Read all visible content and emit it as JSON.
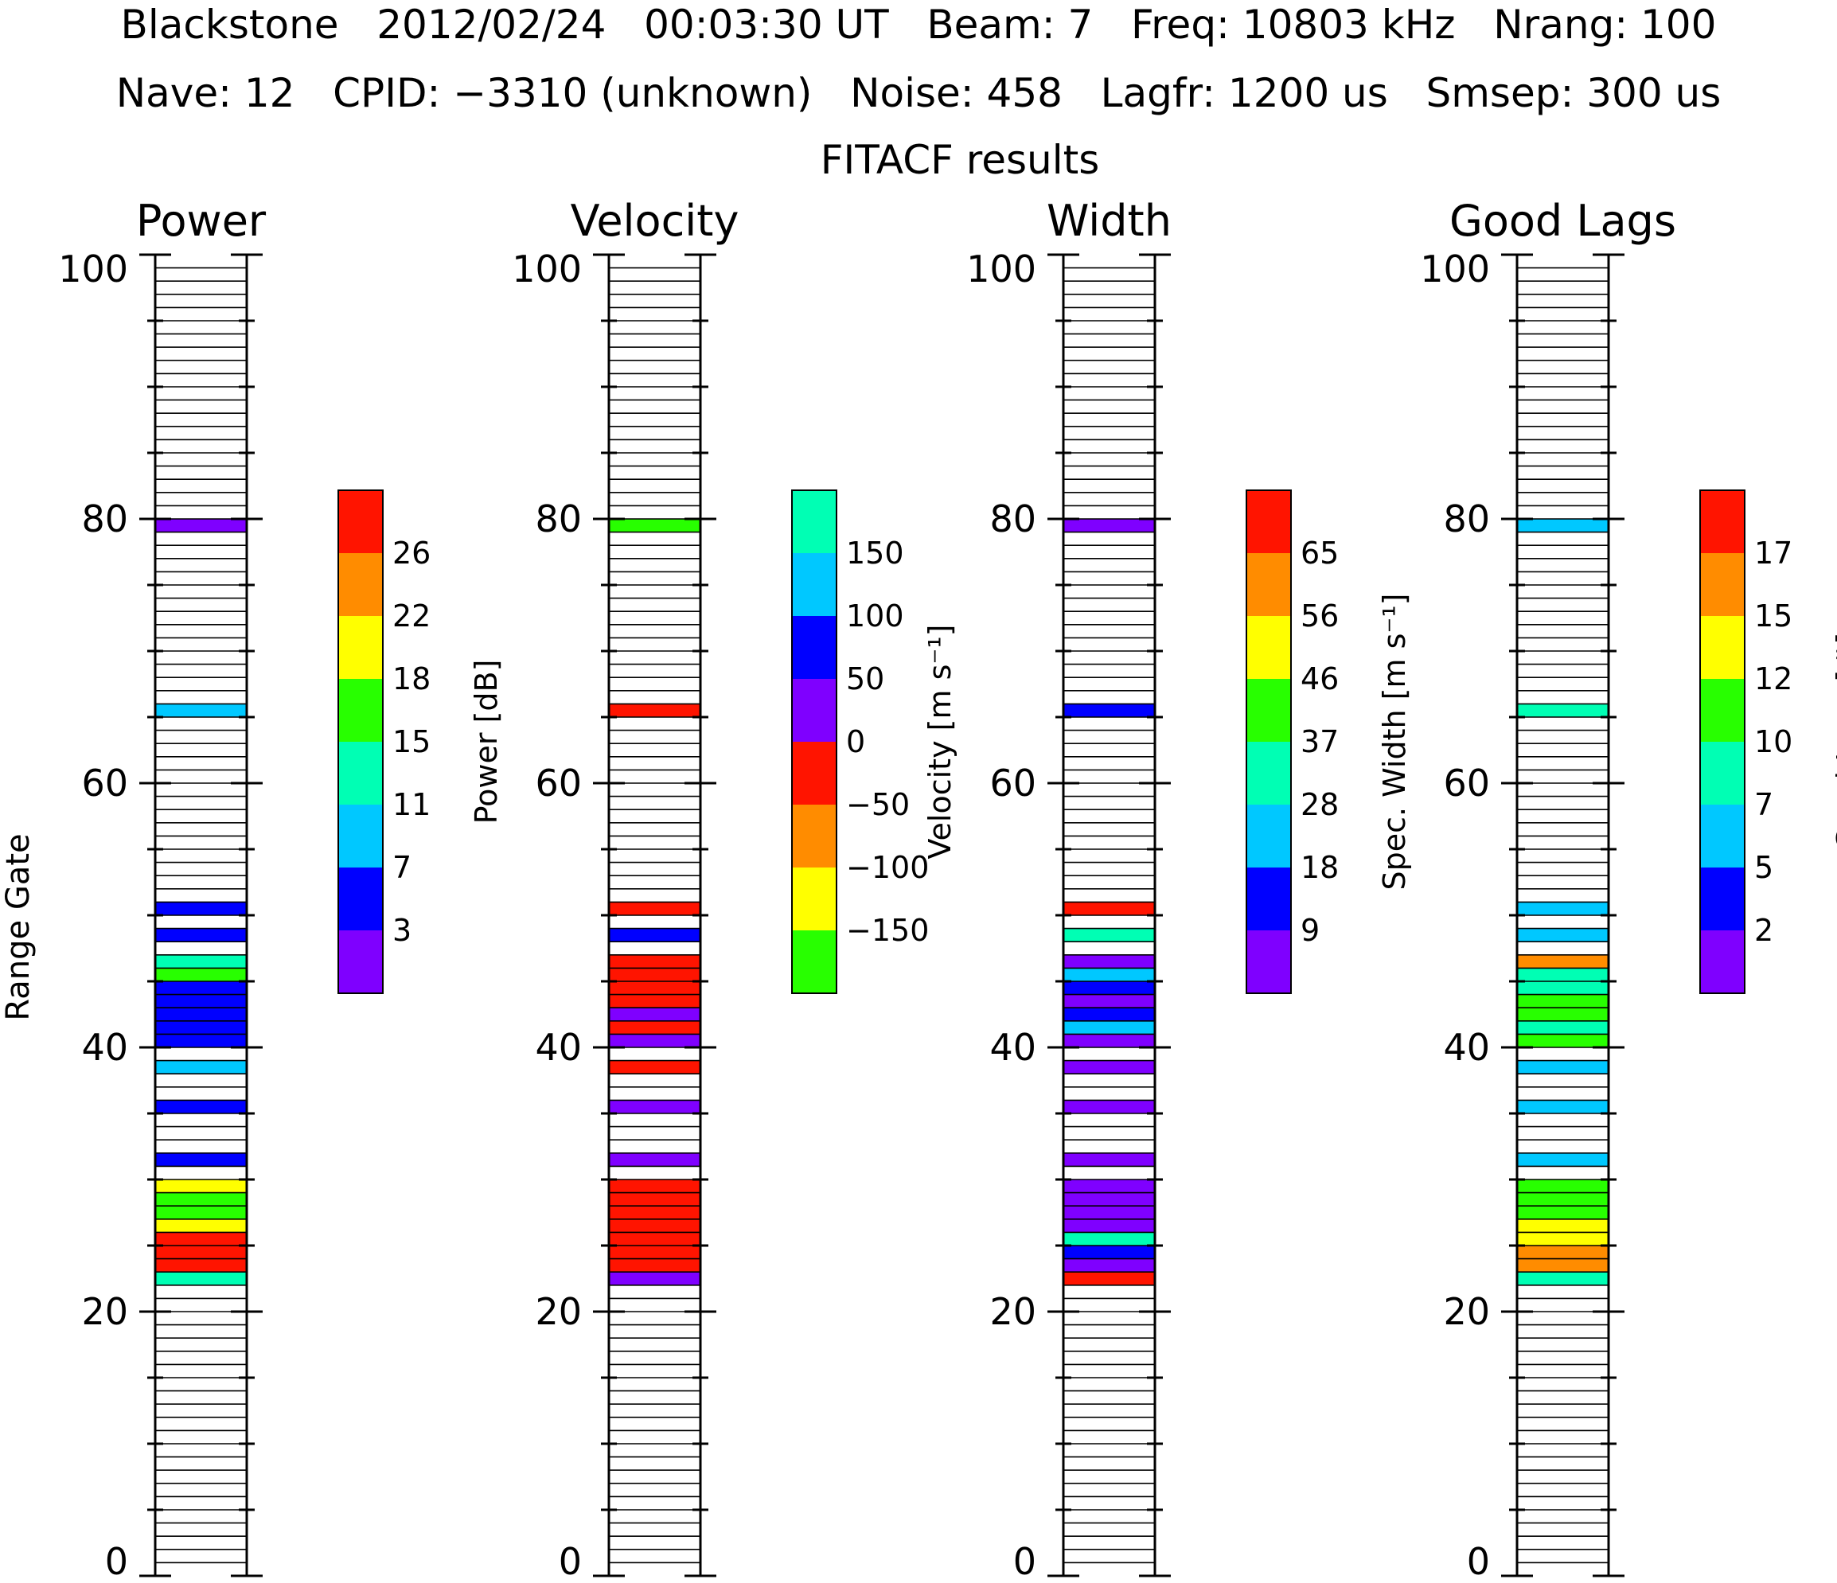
{
  "header": {
    "line1": "Blackstone   2012/02/24   00:03:30 UT   Beam: 7   Freq: 10803 kHz   Nrang: 100",
    "line2": "Nave: 12   CPID: −3310 (unknown)   Noise: 458   Lagfr: 1200 us   Smsep: 300 us",
    "subtitle": "FITACF results"
  },
  "y_axis": {
    "label": "Range Gate",
    "range": [
      0,
      100
    ],
    "ticks": [
      "0",
      "20",
      "40",
      "60",
      "80",
      "100"
    ]
  },
  "palette": {
    "purple": "#7f00ff",
    "blue": "#0000ff",
    "cyan": "#00c8ff",
    "teal": "#00ffb4",
    "green": "#28ff00",
    "yellow": "#ffff00",
    "orange": "#ff8c00",
    "red": "#ff1400"
  },
  "chart_data": [
    {
      "type": "heatmap",
      "title": "Power",
      "colorbar": {
        "title": "Power [dB]",
        "colors": [
          "purple",
          "blue",
          "cyan",
          "teal",
          "green",
          "yellow",
          "orange",
          "red"
        ],
        "tick_labels": [
          "3",
          "7",
          "11",
          "15",
          "18",
          "22",
          "26"
        ]
      },
      "gates": [
        {
          "gate": 22,
          "color": "teal"
        },
        {
          "gate": 23,
          "color": "red"
        },
        {
          "gate": 24,
          "color": "red"
        },
        {
          "gate": 25,
          "color": "red"
        },
        {
          "gate": 26,
          "color": "yellow"
        },
        {
          "gate": 27,
          "color": "green"
        },
        {
          "gate": 28,
          "color": "green"
        },
        {
          "gate": 29,
          "color": "yellow"
        },
        {
          "gate": 31,
          "color": "blue"
        },
        {
          "gate": 35,
          "color": "blue"
        },
        {
          "gate": 38,
          "color": "cyan"
        },
        {
          "gate": 40,
          "color": "blue"
        },
        {
          "gate": 41,
          "color": "blue"
        },
        {
          "gate": 42,
          "color": "blue"
        },
        {
          "gate": 43,
          "color": "blue"
        },
        {
          "gate": 44,
          "color": "blue"
        },
        {
          "gate": 45,
          "color": "green"
        },
        {
          "gate": 46,
          "color": "teal"
        },
        {
          "gate": 48,
          "color": "blue"
        },
        {
          "gate": 50,
          "color": "blue"
        },
        {
          "gate": 65,
          "color": "cyan"
        },
        {
          "gate": 79,
          "color": "purple"
        }
      ]
    },
    {
      "type": "heatmap",
      "title": "Velocity",
      "colorbar": {
        "title": "Velocity [m s⁻¹]",
        "colors": [
          "green",
          "yellow",
          "orange",
          "red",
          "purple",
          "blue",
          "cyan",
          "teal"
        ],
        "tick_labels": [
          "−150",
          "−100",
          "−50",
          "0",
          "50",
          "100",
          "150"
        ]
      },
      "gates": [
        {
          "gate": 22,
          "color": "purple"
        },
        {
          "gate": 23,
          "color": "red"
        },
        {
          "gate": 24,
          "color": "red"
        },
        {
          "gate": 25,
          "color": "red"
        },
        {
          "gate": 26,
          "color": "red"
        },
        {
          "gate": 27,
          "color": "red"
        },
        {
          "gate": 28,
          "color": "red"
        },
        {
          "gate": 29,
          "color": "red"
        },
        {
          "gate": 31,
          "color": "purple"
        },
        {
          "gate": 35,
          "color": "purple"
        },
        {
          "gate": 38,
          "color": "red"
        },
        {
          "gate": 40,
          "color": "purple"
        },
        {
          "gate": 41,
          "color": "red"
        },
        {
          "gate": 42,
          "color": "purple"
        },
        {
          "gate": 43,
          "color": "red"
        },
        {
          "gate": 44,
          "color": "red"
        },
        {
          "gate": 45,
          "color": "red"
        },
        {
          "gate": 46,
          "color": "red"
        },
        {
          "gate": 48,
          "color": "blue"
        },
        {
          "gate": 50,
          "color": "red"
        },
        {
          "gate": 65,
          "color": "red"
        },
        {
          "gate": 79,
          "color": "green"
        }
      ]
    },
    {
      "type": "heatmap",
      "title": "Width",
      "colorbar": {
        "title": "Spec. Width [m s⁻¹]",
        "colors": [
          "purple",
          "blue",
          "cyan",
          "teal",
          "green",
          "yellow",
          "orange",
          "red"
        ],
        "tick_labels": [
          "9",
          "18",
          "28",
          "37",
          "46",
          "56",
          "65"
        ]
      },
      "gates": [
        {
          "gate": 22,
          "color": "red"
        },
        {
          "gate": 23,
          "color": "purple"
        },
        {
          "gate": 24,
          "color": "blue"
        },
        {
          "gate": 25,
          "color": "teal"
        },
        {
          "gate": 26,
          "color": "purple"
        },
        {
          "gate": 27,
          "color": "purple"
        },
        {
          "gate": 28,
          "color": "purple"
        },
        {
          "gate": 29,
          "color": "purple"
        },
        {
          "gate": 31,
          "color": "purple"
        },
        {
          "gate": 35,
          "color": "purple"
        },
        {
          "gate": 38,
          "color": "purple"
        },
        {
          "gate": 40,
          "color": "purple"
        },
        {
          "gate": 41,
          "color": "cyan"
        },
        {
          "gate": 42,
          "color": "blue"
        },
        {
          "gate": 43,
          "color": "purple"
        },
        {
          "gate": 44,
          "color": "blue"
        },
        {
          "gate": 45,
          "color": "cyan"
        },
        {
          "gate": 46,
          "color": "purple"
        },
        {
          "gate": 48,
          "color": "teal"
        },
        {
          "gate": 50,
          "color": "red"
        },
        {
          "gate": 65,
          "color": "blue"
        },
        {
          "gate": 79,
          "color": "purple"
        }
      ]
    },
    {
      "type": "heatmap",
      "title": "Good Lags",
      "colorbar": {
        "title": "Good Lags [#]",
        "colors": [
          "purple",
          "blue",
          "cyan",
          "teal",
          "green",
          "yellow",
          "orange",
          "red"
        ],
        "tick_labels": [
          "2",
          "5",
          "7",
          "10",
          "12",
          "15",
          "17"
        ]
      },
      "gates": [
        {
          "gate": 22,
          "color": "teal"
        },
        {
          "gate": 23,
          "color": "orange"
        },
        {
          "gate": 24,
          "color": "orange"
        },
        {
          "gate": 25,
          "color": "yellow"
        },
        {
          "gate": 26,
          "color": "yellow"
        },
        {
          "gate": 27,
          "color": "green"
        },
        {
          "gate": 28,
          "color": "green"
        },
        {
          "gate": 29,
          "color": "green"
        },
        {
          "gate": 31,
          "color": "cyan"
        },
        {
          "gate": 35,
          "color": "cyan"
        },
        {
          "gate": 38,
          "color": "cyan"
        },
        {
          "gate": 40,
          "color": "green"
        },
        {
          "gate": 41,
          "color": "teal"
        },
        {
          "gate": 42,
          "color": "green"
        },
        {
          "gate": 43,
          "color": "green"
        },
        {
          "gate": 44,
          "color": "teal"
        },
        {
          "gate": 45,
          "color": "teal"
        },
        {
          "gate": 46,
          "color": "orange"
        },
        {
          "gate": 48,
          "color": "cyan"
        },
        {
          "gate": 50,
          "color": "cyan"
        },
        {
          "gate": 65,
          "color": "teal"
        },
        {
          "gate": 79,
          "color": "cyan"
        }
      ]
    }
  ]
}
